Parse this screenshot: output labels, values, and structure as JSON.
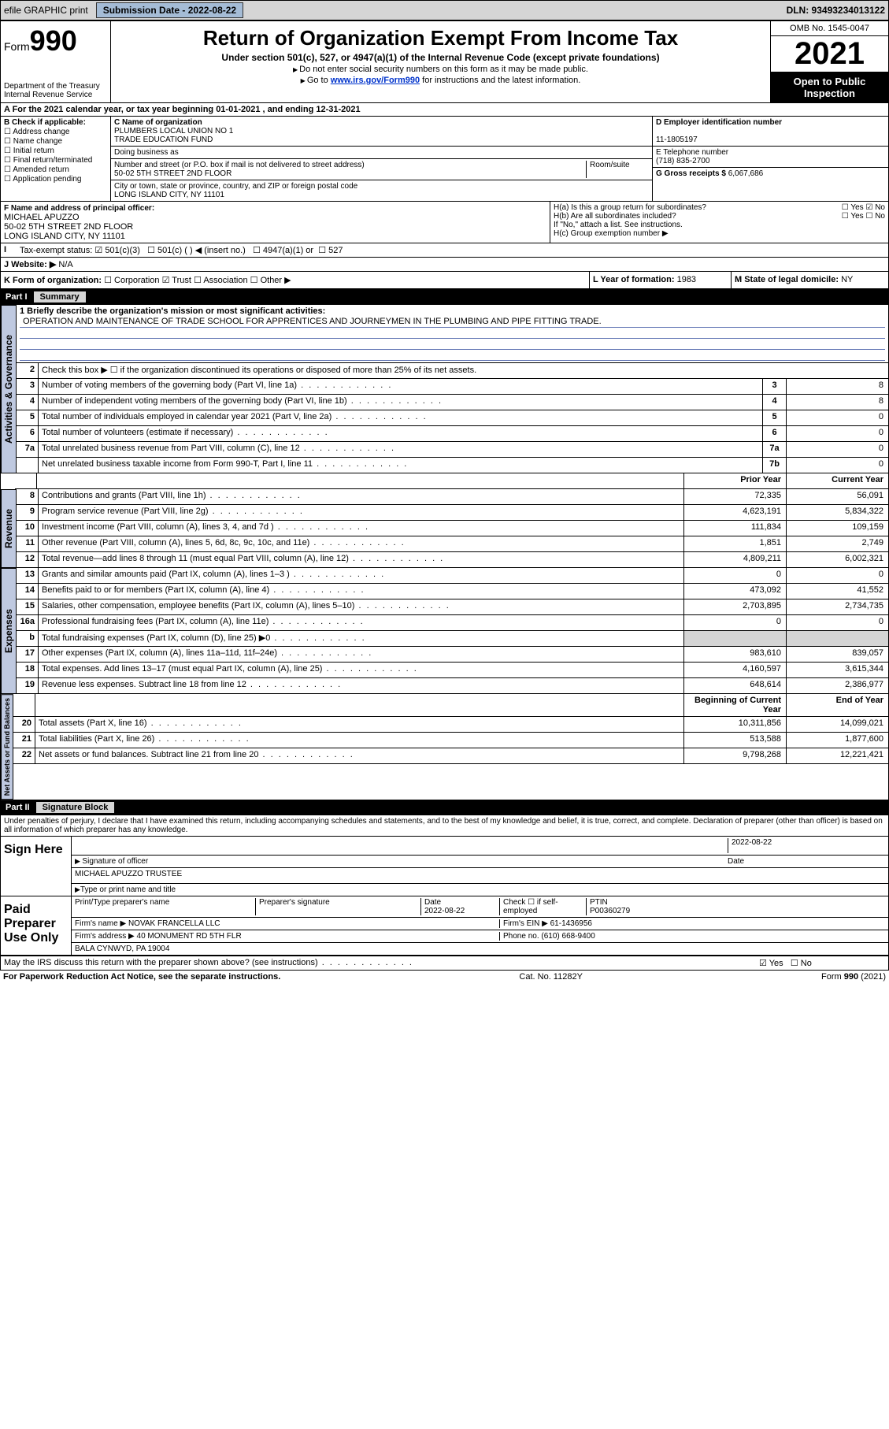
{
  "topbar": {
    "efile": "efile GRAPHIC print",
    "submission_label": "Submission Date - 2022-08-22",
    "dln": "DLN: 93493234013122"
  },
  "header": {
    "form_prefix": "Form",
    "form_num": "990",
    "dept": "Department of the Treasury",
    "irs": "Internal Revenue Service",
    "title": "Return of Organization Exempt From Income Tax",
    "sub": "Under section 501(c), 527, or 4947(a)(1) of the Internal Revenue Code (except private foundations)",
    "note1": "Do not enter social security numbers on this form as it may be made public.",
    "note2_pre": "Go to ",
    "note2_link": "www.irs.gov/Form990",
    "note2_post": " for instructions and the latest information.",
    "omb": "OMB No. 1545-0047",
    "year": "2021",
    "open": "Open to Public Inspection"
  },
  "section_a": {
    "text": "A For the 2021 calendar year, or tax year beginning 01-01-2021   , and ending 12-31-2021"
  },
  "section_b": {
    "title": "B Check if applicable:",
    "opts": [
      "Address change",
      "Name change",
      "Initial return",
      "Final return/terminated",
      "Amended return",
      "Application pending"
    ]
  },
  "section_c": {
    "lbl_name": "C Name of organization",
    "org_name": "PLUMBERS LOCAL UNION NO 1\nTRADE EDUCATION FUND",
    "dba_lbl": "Doing business as",
    "addr_lbl": "Number and street (or P.O. box if mail is not delivered to street address)",
    "room_lbl": "Room/suite",
    "addr": "50-02 5TH STREET 2ND FLOOR",
    "city_lbl": "City or town, state or province, country, and ZIP or foreign postal code",
    "city": "LONG ISLAND CITY, NY  11101"
  },
  "section_d": {
    "lbl": "D Employer identification number",
    "val": "11-1805197"
  },
  "section_e": {
    "lbl": "E Telephone number",
    "val": "(718) 835-2700"
  },
  "section_g": {
    "lbl": "G Gross receipts $",
    "val": "6,067,686"
  },
  "section_f": {
    "lbl": "F Name and address of principal officer:",
    "name": "MICHAEL APUZZO",
    "addr": "50-02 5TH STREET 2ND FLOOR\nLONG ISLAND CITY, NY  11101"
  },
  "section_h": {
    "ha": "H(a)  Is this a group return for subordinates?",
    "hb": "H(b)  Are all subordinates included?",
    "hb_note": "If \"No,\" attach a list. See instructions.",
    "hc": "H(c)  Group exemption number ▶",
    "yes": "Yes",
    "no": "No"
  },
  "section_i": {
    "lbl": "Tax-exempt status:",
    "c3": "501(c)(3)",
    "c": "501(c) (   ) ◀ (insert no.)",
    "a1": "4947(a)(1) or",
    "s527": "527"
  },
  "section_j": {
    "lbl": "J   Website: ▶",
    "val": "N/A"
  },
  "section_k": {
    "lbl": "K Form of organization:",
    "opts": [
      "Corporation",
      "Trust",
      "Association",
      "Other ▶"
    ]
  },
  "section_l": {
    "lbl": "L Year of formation:",
    "val": "1983"
  },
  "section_m": {
    "lbl": "M State of legal domicile:",
    "val": "NY"
  },
  "part1": {
    "hdr_num": "Part I",
    "hdr_title": "Summary",
    "mission_lbl": "1   Briefly describe the organization's mission or most significant activities:",
    "mission": "OPERATION AND MAINTENANCE OF TRADE SCHOOL FOR APPRENTICES AND JOURNEYMEN IN THE PLUMBING AND PIPE FITTING TRADE.",
    "line2": "Check this box ▶ ☐  if the organization discontinued its operations or disposed of more than 25% of its net assets."
  },
  "sideA": "Activities & Governance",
  "sideR": "Revenue",
  "sideE": "Expenses",
  "sideN": "Net Assets or Fund Balances",
  "gov_rows": [
    {
      "n": "3",
      "d": "Number of voting members of the governing body (Part VI, line 1a)",
      "c": "3",
      "v": "8"
    },
    {
      "n": "4",
      "d": "Number of independent voting members of the governing body (Part VI, line 1b)",
      "c": "4",
      "v": "8"
    },
    {
      "n": "5",
      "d": "Total number of individuals employed in calendar year 2021 (Part V, line 2a)",
      "c": "5",
      "v": "0"
    },
    {
      "n": "6",
      "d": "Total number of volunteers (estimate if necessary)",
      "c": "6",
      "v": "0"
    },
    {
      "n": "7a",
      "d": "Total unrelated business revenue from Part VIII, column (C), line 12",
      "c": "7a",
      "v": "0"
    },
    {
      "n": "",
      "d": "Net unrelated business taxable income from Form 990-T, Part I, line 11",
      "c": "7b",
      "v": "0"
    }
  ],
  "col_hdr": {
    "prior": "Prior Year",
    "current": "Current Year",
    "begin": "Beginning of Current Year",
    "end": "End of Year"
  },
  "rev_rows": [
    {
      "n": "8",
      "d": "Contributions and grants (Part VIII, line 1h)",
      "p": "72,335",
      "c": "56,091"
    },
    {
      "n": "9",
      "d": "Program service revenue (Part VIII, line 2g)",
      "p": "4,623,191",
      "c": "5,834,322"
    },
    {
      "n": "10",
      "d": "Investment income (Part VIII, column (A), lines 3, 4, and 7d )",
      "p": "111,834",
      "c": "109,159"
    },
    {
      "n": "11",
      "d": "Other revenue (Part VIII, column (A), lines 5, 6d, 8c, 9c, 10c, and 11e)",
      "p": "1,851",
      "c": "2,749"
    },
    {
      "n": "12",
      "d": "Total revenue—add lines 8 through 11 (must equal Part VIII, column (A), line 12)",
      "p": "4,809,211",
      "c": "6,002,321"
    }
  ],
  "exp_rows": [
    {
      "n": "13",
      "d": "Grants and similar amounts paid (Part IX, column (A), lines 1–3 )",
      "p": "0",
      "c": "0"
    },
    {
      "n": "14",
      "d": "Benefits paid to or for members (Part IX, column (A), line 4)",
      "p": "473,092",
      "c": "41,552"
    },
    {
      "n": "15",
      "d": "Salaries, other compensation, employee benefits (Part IX, column (A), lines 5–10)",
      "p": "2,703,895",
      "c": "2,734,735"
    },
    {
      "n": "16a",
      "d": "Professional fundraising fees (Part IX, column (A), line 11e)",
      "p": "0",
      "c": "0"
    },
    {
      "n": "b",
      "d": "Total fundraising expenses (Part IX, column (D), line 25) ▶0",
      "p": "",
      "c": "",
      "shade": true
    },
    {
      "n": "17",
      "d": "Other expenses (Part IX, column (A), lines 11a–11d, 11f–24e)",
      "p": "983,610",
      "c": "839,057"
    },
    {
      "n": "18",
      "d": "Total expenses. Add lines 13–17 (must equal Part IX, column (A), line 25)",
      "p": "4,160,597",
      "c": "3,615,344"
    },
    {
      "n": "19",
      "d": "Revenue less expenses. Subtract line 18 from line 12",
      "p": "648,614",
      "c": "2,386,977"
    }
  ],
  "net_rows": [
    {
      "n": "20",
      "d": "Total assets (Part X, line 16)",
      "p": "10,311,856",
      "c": "14,099,021"
    },
    {
      "n": "21",
      "d": "Total liabilities (Part X, line 26)",
      "p": "513,588",
      "c": "1,877,600"
    },
    {
      "n": "22",
      "d": "Net assets or fund balances. Subtract line 21 from line 20",
      "p": "9,798,268",
      "c": "12,221,421"
    }
  ],
  "part2": {
    "hdr_num": "Part II",
    "hdr_title": "Signature Block",
    "decl": "Under penalties of perjury, I declare that I have examined this return, including accompanying schedules and statements, and to the best of my knowledge and belief, it is true, correct, and complete. Declaration of preparer (other than officer) is based on all information of which preparer has any knowledge."
  },
  "sign": {
    "here": "Sign Here",
    "sig_lbl": "Signature of officer",
    "date_lbl": "Date",
    "date": "2022-08-22",
    "officer": "MICHAEL APUZZO  TRUSTEE",
    "officer_lbl": "Type or print name and title"
  },
  "paid": {
    "lbl": "Paid Preparer Use Only",
    "h1": "Print/Type preparer's name",
    "h2": "Preparer's signature",
    "h3": "Date",
    "h3v": "2022-08-22",
    "h4": "Check ☐ if self-employed",
    "h5": "PTIN",
    "h5v": "P00360279",
    "firm_lbl": "Firm's name    ▶",
    "firm": "NOVAK FRANCELLA LLC",
    "ein_lbl": "Firm's EIN ▶",
    "ein": "61-1436956",
    "addr_lbl": "Firm's address ▶",
    "addr1": "40 MONUMENT RD 5TH FLR",
    "addr2": "BALA CYNWYD, PA  19004",
    "phone_lbl": "Phone no.",
    "phone": "(610) 668-9400"
  },
  "discuss": {
    "q": "May the IRS discuss this return with the preparer shown above? (see instructions)",
    "yes": "Yes",
    "no": "No"
  },
  "footer": {
    "pra": "For Paperwork Reduction Act Notice, see the separate instructions.",
    "cat": "Cat. No. 11282Y",
    "form": "Form 990 (2021)"
  }
}
